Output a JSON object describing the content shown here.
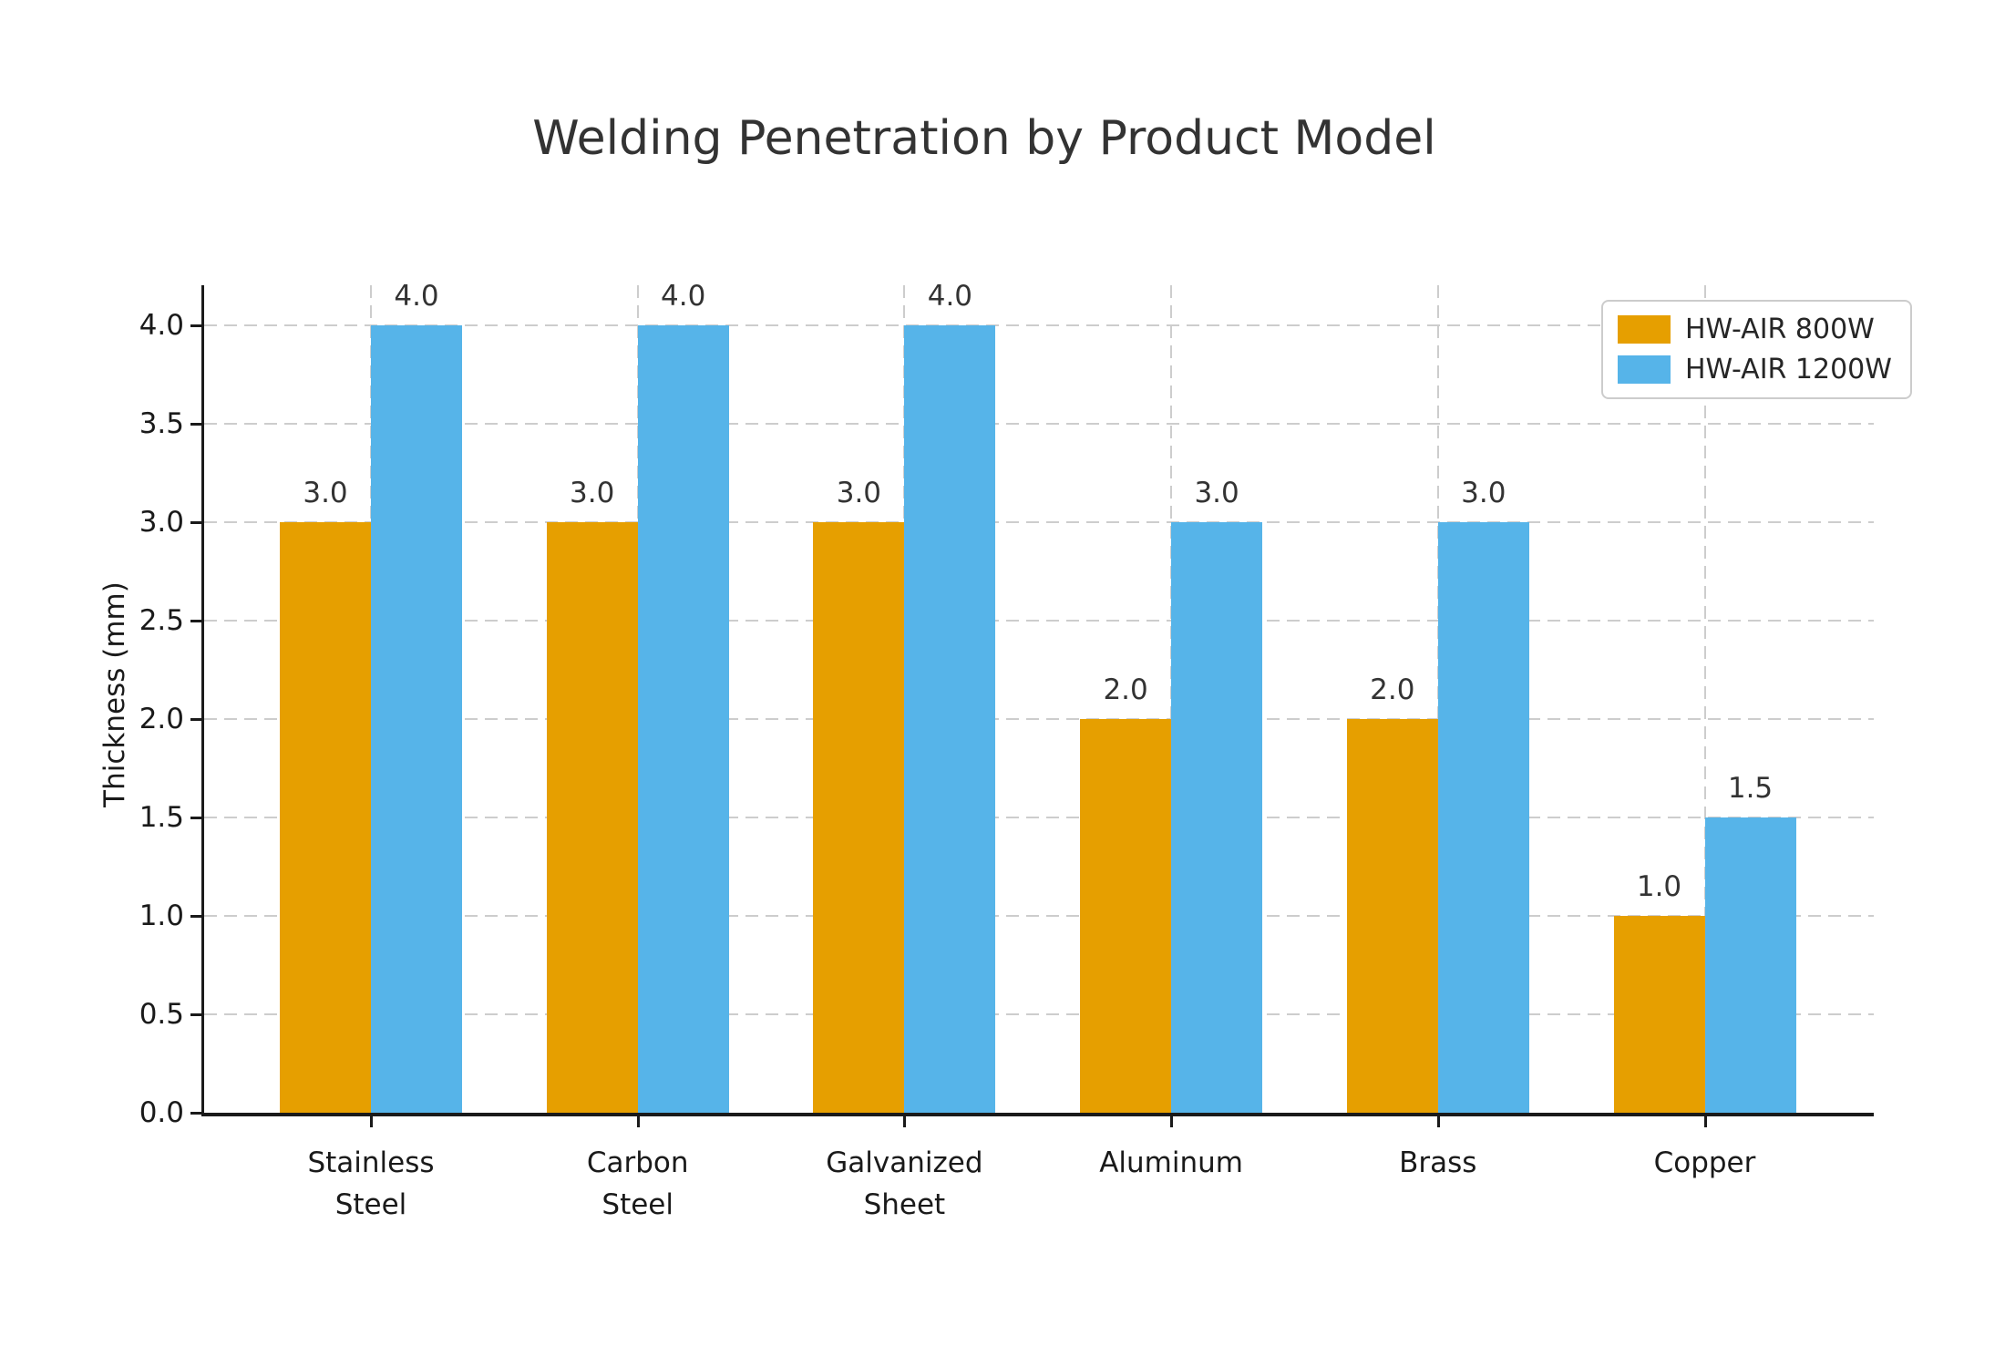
{
  "title": "Welding Penetration by Product Model",
  "chart_data": {
    "type": "bar",
    "title": "Welding Penetration by Product Model",
    "xlabel": "",
    "ylabel": "Thickness (mm)",
    "categories": [
      "Stainless\nSteel",
      "Carbon\nSteel",
      "Galvanized\nSheet",
      "Aluminum",
      "Brass",
      "Copper"
    ],
    "series": [
      {
        "name": "HW-AIR 800W",
        "color": "#E69F00",
        "values": [
          3.0,
          3.0,
          3.0,
          2.0,
          2.0,
          1.0
        ]
      },
      {
        "name": "HW-AIR 1200W",
        "color": "#56B4E9",
        "values": [
          4.0,
          4.0,
          4.0,
          3.0,
          3.0,
          1.5
        ]
      }
    ],
    "bar_value_labels": [
      [
        "3.0",
        "3.0",
        "3.0",
        "2.0",
        "2.0",
        "1.0"
      ],
      [
        "4.0",
        "4.0",
        "4.0",
        "3.0",
        "3.0",
        "1.5"
      ]
    ],
    "yticks": [
      0.0,
      0.5,
      1.0,
      1.5,
      2.0,
      2.5,
      3.0,
      3.5,
      4.0
    ],
    "ytick_labels": [
      "0.0",
      "0.5",
      "1.0",
      "1.5",
      "2.0",
      "2.5",
      "3.0",
      "3.5",
      "4.0"
    ],
    "ylim": [
      0,
      4.2
    ],
    "grid": "dashed-both-axes",
    "legend_position": "upper-right",
    "grid_color": "#cdcdcd",
    "axis_color": "#1a1a1a",
    "text_color": "#333333"
  }
}
